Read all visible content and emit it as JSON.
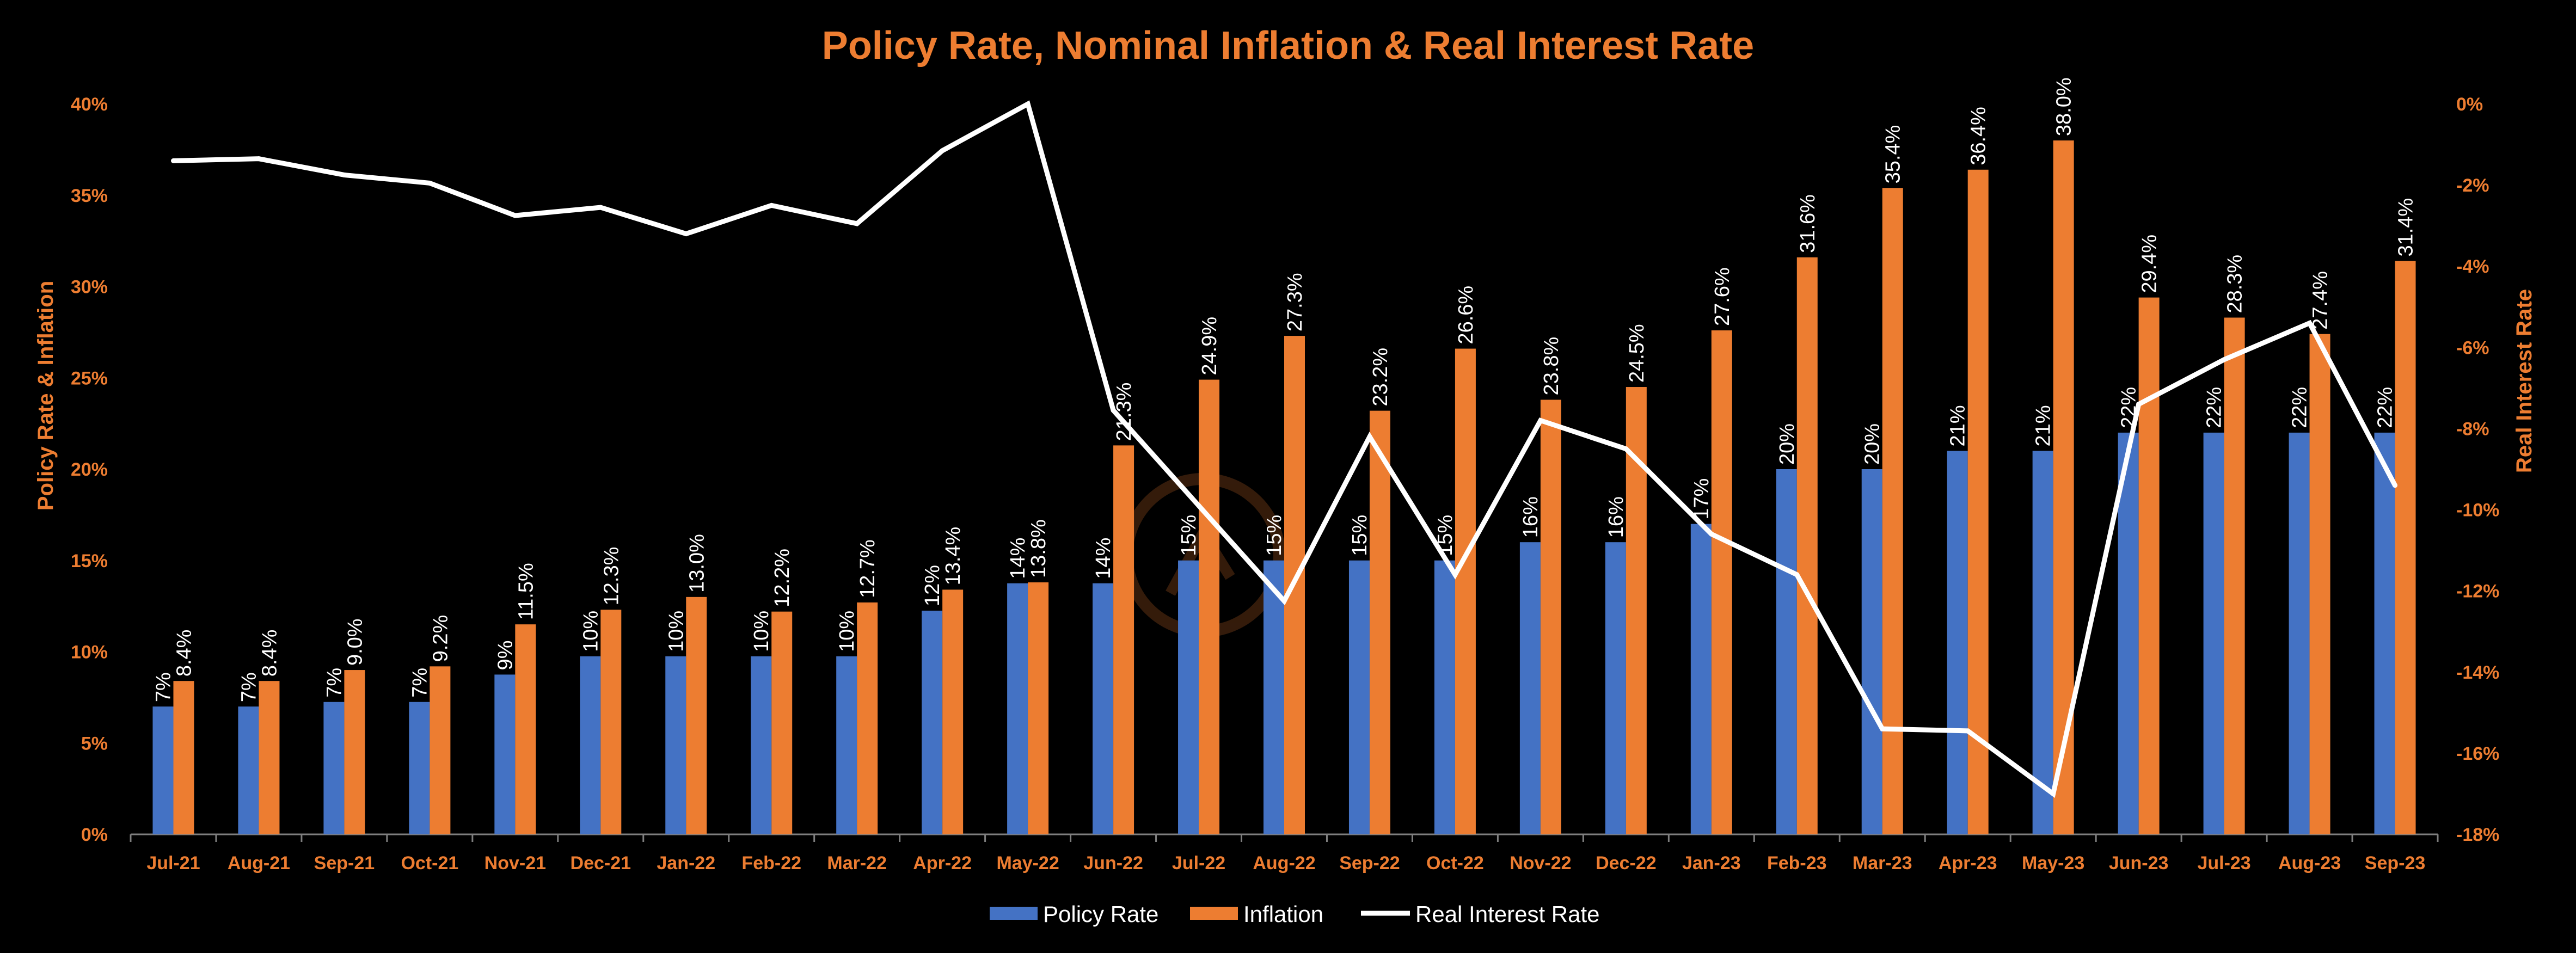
{
  "colors": {
    "background": "#000000",
    "accent": "#ED7D31",
    "policy_rate": "#4472C4",
    "inflation": "#ED7D31",
    "real_rate": "#FFFFFF",
    "label_text": "#FFFFFF"
  },
  "chart_data": {
    "type": "bar",
    "title": "Policy Rate, Nominal Inflation & Real Interest Rate",
    "ylabel": "Policy Rate & Inflation",
    "y2label": "Real Interest Rate",
    "ylim": [
      0,
      40
    ],
    "y2lim": [
      -18,
      0
    ],
    "yticks": [
      "0%",
      "5%",
      "10%",
      "15%",
      "20%",
      "25%",
      "30%",
      "35%",
      "40%"
    ],
    "y2ticks": [
      "0%",
      "-2%",
      "-4%",
      "-6%",
      "-8%",
      "-10%",
      "-12%",
      "-14%",
      "-16%",
      "-18%"
    ],
    "legend_position": "bottom",
    "grid": false,
    "categories": [
      "Jul-21",
      "Aug-21",
      "Sep-21",
      "Oct-21",
      "Nov-21",
      "Dec-21",
      "Jan-22",
      "Feb-22",
      "Mar-22",
      "Apr-22",
      "May-22",
      "Jun-22",
      "Jul-22",
      "Aug-22",
      "Sep-22",
      "Oct-22",
      "Nov-22",
      "Dec-22",
      "Jan-23",
      "Feb-23",
      "Mar-23",
      "Apr-23",
      "May-23",
      "Jun-23",
      "Jul-23",
      "Aug-23",
      "Sep-23"
    ],
    "series": [
      {
        "name": "Policy Rate",
        "type": "bar",
        "axis": "left",
        "values": [
          7,
          7,
          7.25,
          7.25,
          8.75,
          9.75,
          9.75,
          9.75,
          9.75,
          12.25,
          13.75,
          13.75,
          15,
          15,
          15,
          15,
          16,
          16,
          17,
          20,
          20,
          21,
          21,
          22,
          22,
          22,
          22
        ],
        "labels": [
          "7%",
          "7%",
          "7%",
          "7%",
          "9%",
          "10%",
          "10%",
          "10%",
          "10%",
          "12%",
          "14%",
          "14%",
          "15%",
          "15%",
          "15%",
          "15%",
          "16%",
          "16%",
          "17%",
          "20%",
          "20%",
          "21%",
          "21%",
          "22%",
          "22%",
          "22%",
          "22%"
        ]
      },
      {
        "name": "Inflation",
        "type": "bar",
        "axis": "left",
        "values": [
          8.4,
          8.4,
          9.0,
          9.2,
          11.5,
          12.3,
          13.0,
          12.2,
          12.7,
          13.4,
          13.8,
          21.3,
          24.9,
          27.3,
          23.2,
          26.6,
          23.8,
          24.5,
          27.6,
          31.6,
          35.4,
          36.4,
          38.0,
          29.4,
          28.3,
          27.4,
          31.4
        ],
        "labels": [
          "8.4%",
          "8.4%",
          "9.0%",
          "9.2%",
          "11.5%",
          "12.3%",
          "13.0%",
          "12.2%",
          "12.7%",
          "13.4%",
          "13.8%",
          "21.3%",
          "24.9%",
          "27.3%",
          "23.2%",
          "26.6%",
          "23.8%",
          "24.5%",
          "27.6%",
          "31.6%",
          "35.4%",
          "36.4%",
          "38.0%",
          "29.4%",
          "28.3%",
          "27.4%",
          "31.4%"
        ]
      },
      {
        "name": "Real Interest Rate",
        "type": "line",
        "axis": "right",
        "values": [
          -1.4,
          -1.35,
          -1.75,
          -1.95,
          -2.75,
          -2.55,
          -3.2,
          -2.5,
          -2.95,
          -1.15,
          0,
          -7.55,
          -9.9,
          -12.25,
          -8.2,
          -11.6,
          -7.8,
          -8.5,
          -10.6,
          -11.6,
          -15.4,
          -15.45,
          -17.0,
          -7.4,
          -6.3,
          -5.4,
          -9.4
        ]
      }
    ]
  }
}
